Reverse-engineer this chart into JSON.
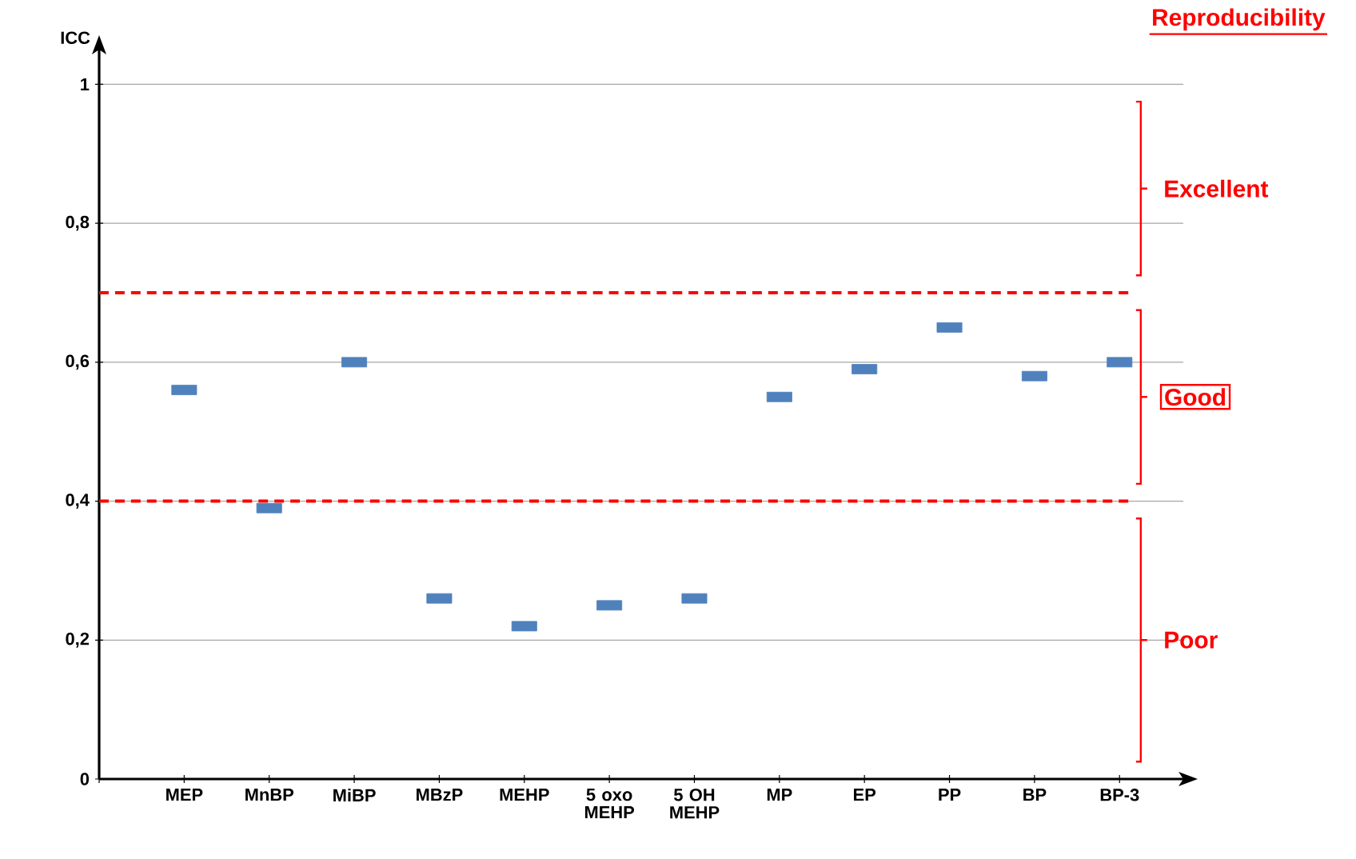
{
  "chart_data": {
    "type": "scatter",
    "title": "Reproducibility",
    "ylabel": "ICC",
    "categories": [
      "MEP",
      "MnBP",
      "MiBP",
      "MBzP",
      "MEHP",
      "5 oxo MEHP",
      "5 OH MEHP",
      "MP",
      "EP",
      "PP",
      "BP",
      "BP-3"
    ],
    "series": [
      {
        "color": "#4f81bd",
        "values": [
          0.56,
          0.39,
          0.6,
          0.26,
          0.22,
          0.25,
          0.26,
          0.55,
          0.59,
          0.65,
          0.58,
          0.6
        ]
      }
    ],
    "marker": "square",
    "ylim": [
      0,
      1.05
    ],
    "yticks": [
      0,
      {
        "value": 0.2,
        "label": "0,2"
      },
      {
        "value": 0.4,
        "label": "0,4"
      },
      {
        "value": 0.6,
        "label": "0,6"
      },
      {
        "value": 0.8,
        "label": "0,8"
      },
      1
    ],
    "grid": "y",
    "ref_lines": [
      {
        "axis": "y",
        "value": 0.7,
        "color": "#ff0000",
        "line_style": "dashed"
      },
      {
        "axis": "y",
        "value": 0.4,
        "color": "#ff0000",
        "line_style": "dashed"
      }
    ],
    "annotations": [
      "Excellent",
      "Good",
      "Poor"
    ]
  }
}
